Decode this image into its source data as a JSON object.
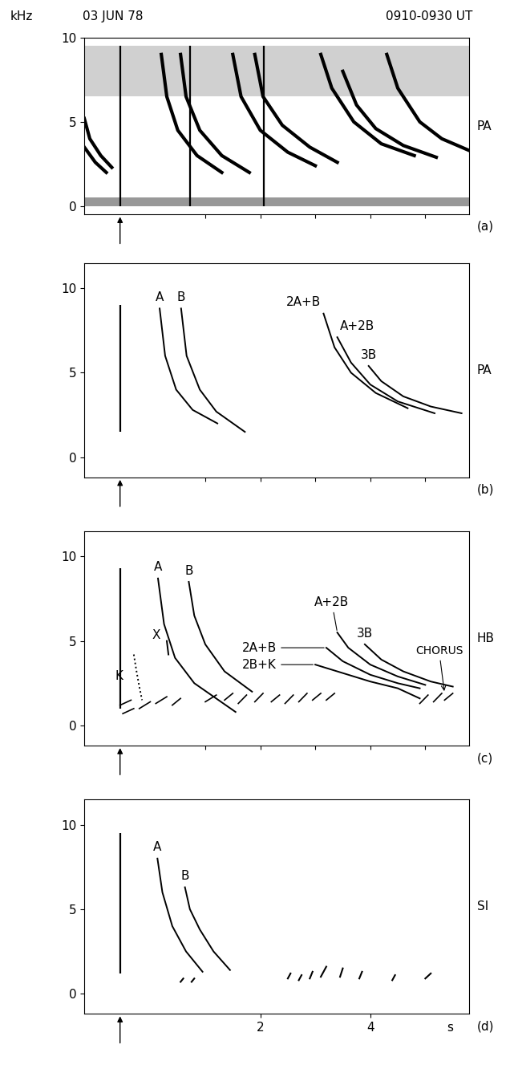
{
  "header": {
    "unit": "kHz",
    "date": "03 JUN 78",
    "time": "0910-0930 UT"
  },
  "chart_data": [
    {
      "type": "spectrogram",
      "station": "PA",
      "panel": "(a)",
      "color": "#000000",
      "xlim": [
        -1.2,
        5.8
      ],
      "ylim": [
        -0.5,
        10
      ],
      "xticks": [
        1,
        2,
        3,
        4,
        5
      ],
      "yticks": [
        0,
        5,
        10
      ],
      "tick_labels": "y",
      "sferic_t": -0.55,
      "sferics": [
        -0.55,
        0.73,
        2.07
      ],
      "sferic_f": [
        0,
        9.5
      ],
      "hiss_band": [
        6.5,
        9.5
      ],
      "noise_band": [
        0,
        0.5
      ],
      "series": [
        {
          "t": [
            -1.2,
            -1.1,
            -0.9,
            -0.7
          ],
          "f": [
            5.2,
            4.0,
            3.0,
            2.3
          ]
        },
        {
          "t": [
            -1.2,
            -1.0,
            -0.8
          ],
          "f": [
            3.5,
            2.6,
            2.0
          ]
        },
        {
          "t": [
            0.2,
            0.3,
            0.5,
            0.85,
            1.3
          ],
          "f": [
            9.0,
            6.5,
            4.5,
            3.0,
            2.0
          ]
        },
        {
          "t": [
            0.55,
            0.65,
            0.9,
            1.3,
            1.8
          ],
          "f": [
            9.0,
            6.5,
            4.5,
            3.0,
            2.0
          ]
        },
        {
          "t": [
            1.5,
            1.65,
            2.0,
            2.5,
            3.0
          ],
          "f": [
            9.0,
            6.5,
            4.5,
            3.2,
            2.4
          ]
        },
        {
          "t": [
            1.9,
            2.05,
            2.4,
            2.9,
            3.4
          ],
          "f": [
            9.0,
            6.5,
            4.8,
            3.5,
            2.6
          ]
        },
        {
          "t": [
            3.1,
            3.3,
            3.7,
            4.2,
            4.8
          ],
          "f": [
            9.0,
            7.0,
            5.0,
            3.7,
            3.0
          ]
        },
        {
          "t": [
            3.5,
            3.75,
            4.1,
            4.6,
            5.2
          ],
          "f": [
            8.0,
            6.0,
            4.6,
            3.6,
            2.9
          ]
        },
        {
          "t": [
            4.3,
            4.5,
            4.9,
            5.3,
            5.8
          ],
          "f": [
            9.0,
            7.0,
            5.0,
            4.0,
            3.3
          ]
        }
      ]
    },
    {
      "type": "line",
      "station": "PA",
      "panel": "(b)",
      "color": "#000000",
      "xlim": [
        -1.2,
        5.8
      ],
      "ylim": [
        -1.2,
        11.5
      ],
      "xticks": [
        1,
        2,
        3,
        4,
        5
      ],
      "yticks": [
        0,
        5,
        10
      ],
      "tick_labels": "y",
      "sferic_t": -0.55,
      "sferics": [
        -0.55
      ],
      "sferic_f": [
        1.5,
        9.0
      ],
      "series": [
        {
          "name": "A",
          "t": [
            0.17,
            0.27,
            0.47,
            0.77,
            1.22
          ],
          "f": [
            8.8,
            6.0,
            4.0,
            2.8,
            2.0
          ]
        },
        {
          "name": "B",
          "t": [
            0.56,
            0.66,
            0.9,
            1.2,
            1.72
          ],
          "f": [
            8.8,
            6.0,
            4.0,
            2.7,
            1.5
          ]
        },
        {
          "name": "2A+B",
          "t": [
            3.15,
            3.35,
            3.65,
            4.1,
            4.68
          ],
          "f": [
            8.5,
            6.5,
            5.0,
            3.8,
            2.9
          ]
        },
        {
          "name": "A+2B",
          "t": [
            3.4,
            3.65,
            4.0,
            4.5,
            5.17
          ],
          "f": [
            7.1,
            5.6,
            4.3,
            3.3,
            2.6
          ]
        },
        {
          "name": "3B",
          "t": [
            3.97,
            4.2,
            4.6,
            5.1,
            5.66
          ],
          "f": [
            5.4,
            4.5,
            3.6,
            3.0,
            2.6
          ]
        }
      ]
    },
    {
      "type": "line",
      "station": "HB",
      "panel": "(c)",
      "color": "#000000",
      "xlim": [
        -1.2,
        5.8
      ],
      "ylim": [
        -1.2,
        11.5
      ],
      "xticks": [
        1,
        2,
        3,
        4,
        5
      ],
      "yticks": [
        0,
        5,
        10
      ],
      "tick_labels": "y",
      "sferic_t": -0.55,
      "sferics": [
        -0.55
      ],
      "sferic_f": [
        1.0,
        9.3
      ],
      "series": [
        {
          "name": "A",
          "t": [
            0.14,
            0.25,
            0.45,
            0.8,
            1.55
          ],
          "f": [
            8.7,
            6.0,
            4.0,
            2.5,
            0.8
          ]
        },
        {
          "name": "B",
          "t": [
            0.7,
            0.8,
            1.0,
            1.35,
            1.85
          ],
          "f": [
            8.5,
            6.5,
            4.8,
            3.2,
            2.0
          ]
        },
        {
          "name": "X",
          "t": [
            0.3,
            0.33
          ],
          "f": [
            5.0,
            4.2
          ]
        },
        {
          "name": "K",
          "line_style": "dotted",
          "t": [
            -0.3,
            -0.25,
            -0.2,
            -0.15
          ],
          "f": [
            4.2,
            3.2,
            2.3,
            1.5
          ]
        },
        {
          "name": "2A+B",
          "t": [
            3.2,
            3.5,
            4.0,
            4.5,
            4.9
          ],
          "f": [
            4.6,
            3.8,
            3.0,
            2.5,
            2.2
          ]
        },
        {
          "name": "A+2B",
          "t": [
            3.4,
            3.6,
            4.0,
            4.5,
            5.0
          ],
          "f": [
            5.5,
            4.6,
            3.6,
            2.9,
            2.4
          ]
        },
        {
          "name": "3B",
          "t": [
            3.9,
            4.2,
            4.6,
            5.1,
            5.5
          ],
          "f": [
            4.8,
            3.9,
            3.2,
            2.6,
            2.3
          ]
        },
        {
          "name": "2B+K",
          "t": [
            3.0,
            3.5,
            4.0,
            4.5,
            4.9
          ],
          "f": [
            3.6,
            3.1,
            2.6,
            2.2,
            1.6
          ]
        }
      ],
      "chorus_label": "CHORUS",
      "chorus": [
        [
          -0.55,
          1.2,
          -0.35,
          1.5
        ],
        [
          -0.5,
          0.7,
          -0.3,
          1.0
        ],
        [
          -0.2,
          1.0,
          0.0,
          1.4
        ],
        [
          0.1,
          1.3,
          0.3,
          1.7
        ],
        [
          0.4,
          1.2,
          0.55,
          1.6
        ],
        [
          1.0,
          1.4,
          1.2,
          1.8
        ],
        [
          1.35,
          1.5,
          1.5,
          1.9
        ],
        [
          1.6,
          1.3,
          1.75,
          1.8
        ],
        [
          1.9,
          1.4,
          2.05,
          1.9
        ],
        [
          2.2,
          1.4,
          2.35,
          1.8
        ],
        [
          2.45,
          1.3,
          2.6,
          1.8
        ],
        [
          2.7,
          1.4,
          2.85,
          1.9
        ],
        [
          2.95,
          1.5,
          3.1,
          1.9
        ],
        [
          3.2,
          1.5,
          3.35,
          1.9
        ],
        [
          4.9,
          1.3,
          5.05,
          1.8
        ],
        [
          5.15,
          1.4,
          5.3,
          1.9
        ],
        [
          5.35,
          1.5,
          5.5,
          1.9
        ]
      ]
    },
    {
      "type": "line",
      "station": "SI",
      "panel": "(d)",
      "color": "#000000",
      "xlim": [
        -1.2,
        5.8
      ],
      "ylim": [
        -1.2,
        11.5
      ],
      "xticks": [
        2,
        4
      ],
      "yticks": [
        0,
        5,
        10
      ],
      "tick_labels": true,
      "xlabel": "s",
      "sferic_t": -0.55,
      "sferics": [
        -0.55
      ],
      "sferic_f": [
        1.2,
        9.5
      ],
      "series": [
        {
          "name": "A",
          "t": [
            0.13,
            0.22,
            0.4,
            0.65,
            0.95
          ],
          "f": [
            8.0,
            6.0,
            4.0,
            2.5,
            1.3
          ]
        },
        {
          "name": "B",
          "t": [
            0.63,
            0.72,
            0.9,
            1.15,
            1.45
          ],
          "f": [
            6.3,
            5.0,
            3.8,
            2.5,
            1.4
          ]
        }
      ],
      "noise": [
        [
          0.55,
          0.7,
          0.6,
          0.9
        ],
        [
          0.75,
          0.7,
          0.8,
          0.9
        ],
        [
          2.5,
          0.9,
          2.55,
          1.2
        ],
        [
          2.7,
          0.8,
          2.75,
          1.1
        ],
        [
          2.9,
          0.9,
          2.95,
          1.3
        ],
        [
          3.1,
          1.0,
          3.2,
          1.6
        ],
        [
          3.45,
          1.0,
          3.5,
          1.5
        ],
        [
          3.8,
          0.9,
          3.85,
          1.3
        ],
        [
          4.4,
          0.8,
          4.45,
          1.1
        ],
        [
          5.0,
          0.9,
          5.1,
          1.2
        ]
      ]
    }
  ]
}
